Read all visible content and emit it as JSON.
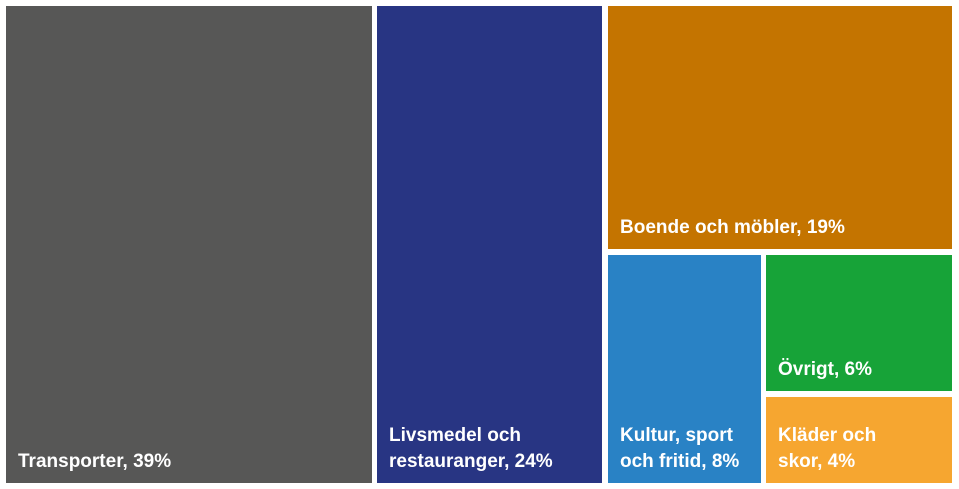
{
  "chart_data": {
    "type": "treemap",
    "items": [
      {
        "label": "Transporter, 39%",
        "name": "Transporter",
        "value": 39,
        "color": "#575756"
      },
      {
        "label": "Livsmedel och\nrestauranger, 24%",
        "name": "Livsmedel och restauranger",
        "value": 24,
        "color": "#283583"
      },
      {
        "label": "Boende och möbler, 19%",
        "name": "Boende och möbler",
        "value": 19,
        "color": "#c47400"
      },
      {
        "label": "Kultur, sport\noch fritid, 8%",
        "name": "Kultur, sport och fritid",
        "value": 8,
        "color": "#2982c5"
      },
      {
        "label": "Övrigt, 6%",
        "name": "Övrigt",
        "value": 6,
        "color": "#17a338"
      },
      {
        "label": "Kläder och\nskor, 4%",
        "name": "Kläder och skor",
        "value": 4,
        "color": "#f6a630"
      }
    ]
  }
}
